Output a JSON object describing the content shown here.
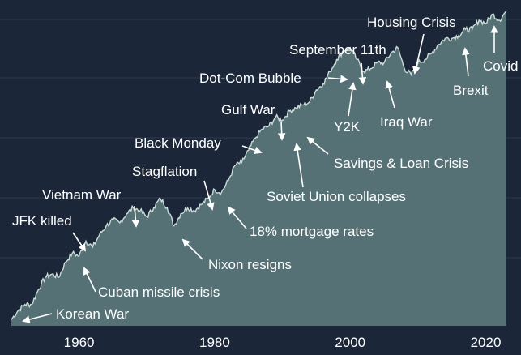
{
  "chart_data": {
    "type": "area",
    "title": "",
    "xlabel": "",
    "ylabel": "",
    "xlim": [
      1950,
      2024
    ],
    "ylim": [
      0,
      1
    ],
    "grid": true,
    "x_ticks": [
      "1960",
      "1980",
      "2000",
      "2020"
    ],
    "x_tick_values": [
      1960,
      1980,
      2000,
      2020
    ],
    "colors": {
      "background": "#1b2639",
      "area_fill": "#5f7f80",
      "line": "#c9dbd6",
      "grid": "#2c3a50",
      "text": "#ffffff"
    },
    "series": [
      {
        "values": [
          [
            1950,
            0.01
          ],
          [
            1951,
            0.04
          ],
          [
            1952,
            0.06
          ],
          [
            1953,
            0.06
          ],
          [
            1954,
            0.11
          ],
          [
            1955,
            0.15
          ],
          [
            1956,
            0.16
          ],
          [
            1957,
            0.15
          ],
          [
            1958,
            0.2
          ],
          [
            1959,
            0.23
          ],
          [
            1960,
            0.22
          ],
          [
            1961,
            0.27
          ],
          [
            1962,
            0.25
          ],
          [
            1963,
            0.29
          ],
          [
            1964,
            0.32
          ],
          [
            1965,
            0.34
          ],
          [
            1966,
            0.33
          ],
          [
            1967,
            0.36
          ],
          [
            1968,
            0.38
          ],
          [
            1969,
            0.37
          ],
          [
            1970,
            0.35
          ],
          [
            1971,
            0.38
          ],
          [
            1972,
            0.41
          ],
          [
            1973,
            0.38
          ],
          [
            1974,
            0.32
          ],
          [
            1975,
            0.36
          ],
          [
            1976,
            0.38
          ],
          [
            1977,
            0.37
          ],
          [
            1978,
            0.39
          ],
          [
            1979,
            0.41
          ],
          [
            1980,
            0.44
          ],
          [
            1981,
            0.43
          ],
          [
            1982,
            0.47
          ],
          [
            1983,
            0.52
          ],
          [
            1984,
            0.53
          ],
          [
            1985,
            0.57
          ],
          [
            1986,
            0.61
          ],
          [
            1987,
            0.64
          ],
          [
            1988,
            0.65
          ],
          [
            1989,
            0.68
          ],
          [
            1990,
            0.67
          ],
          [
            1991,
            0.7
          ],
          [
            1992,
            0.71
          ],
          [
            1993,
            0.72
          ],
          [
            1994,
            0.73
          ],
          [
            1995,
            0.77
          ],
          [
            1996,
            0.79
          ],
          [
            1997,
            0.83
          ],
          [
            1998,
            0.87
          ],
          [
            1999,
            0.9
          ],
          [
            2000,
            0.91
          ],
          [
            2001,
            0.87
          ],
          [
            2002,
            0.83
          ],
          [
            2003,
            0.84
          ],
          [
            2004,
            0.86
          ],
          [
            2005,
            0.86
          ],
          [
            2006,
            0.89
          ],
          [
            2007,
            0.91
          ],
          [
            2008,
            0.84
          ],
          [
            2009,
            0.82
          ],
          [
            2010,
            0.86
          ],
          [
            2011,
            0.87
          ],
          [
            2012,
            0.89
          ],
          [
            2013,
            0.92
          ],
          [
            2014,
            0.94
          ],
          [
            2015,
            0.94
          ],
          [
            2016,
            0.95
          ],
          [
            2017,
            0.97
          ],
          [
            2018,
            0.97
          ],
          [
            2019,
            1.0
          ],
          [
            2020,
            0.99
          ],
          [
            2021,
            1.02
          ],
          [
            2022,
            1.0
          ],
          [
            2023,
            1.03
          ]
        ]
      }
    ],
    "annotations": [
      {
        "label": "Korean War",
        "year": 1952
      },
      {
        "label": "Cuban missile crisis",
        "year": 1961
      },
      {
        "label": "JFK killed",
        "year": 1963
      },
      {
        "label": "Vietnam War",
        "year": 1968
      },
      {
        "label": "Nixon resigns",
        "year": 1974
      },
      {
        "label": "Stagflation",
        "year": 1979
      },
      {
        "label": "18% mortgage rates",
        "year": 1981
      },
      {
        "label": "Black Monday",
        "year": 1987
      },
      {
        "label": "Gulf War",
        "year": 1990
      },
      {
        "label": "Soviet Union collapses",
        "year": 1991
      },
      {
        "label": "Savings & Loan Crisis",
        "year": 1990
      },
      {
        "label": "Dot-Com Bubble",
        "year": 2000
      },
      {
        "label": "Y2K",
        "year": 2000
      },
      {
        "label": "September 11th",
        "year": 2001
      },
      {
        "label": "Iraq War",
        "year": 2003
      },
      {
        "label": "Housing Crisis",
        "year": 2008
      },
      {
        "label": "Brexit",
        "year": 2016
      },
      {
        "label": "Covid",
        "year": 2020
      }
    ]
  }
}
